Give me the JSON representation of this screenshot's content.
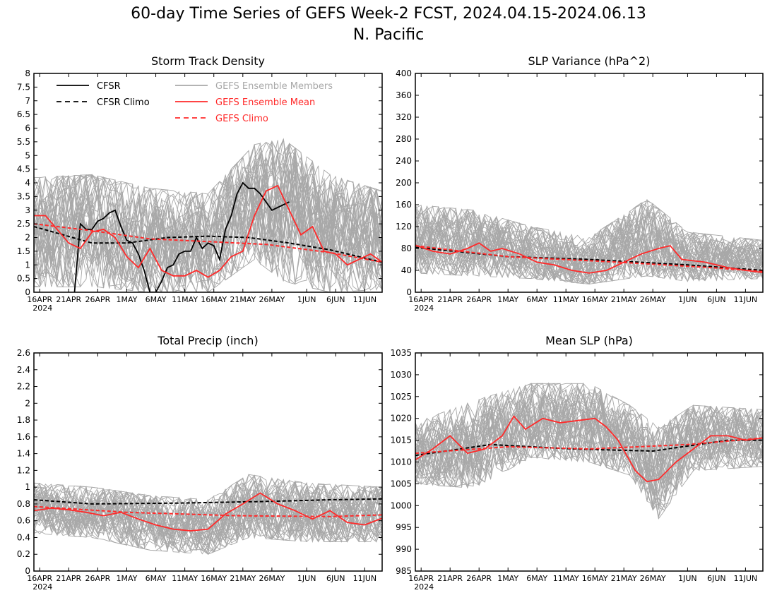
{
  "title_line1": "60-day Time Series of GEFS Week-2 FCST, 2024.04.15-2024.06.13",
  "title_line2": "N. Pacific",
  "colors": {
    "cfsr": "#000000",
    "members": "#a8a8a8",
    "ens_mean": "#ff2a2a",
    "gefs_climo": "#ff2a2a"
  },
  "legend": {
    "cfsr": "CFSR",
    "cfsr_climo": "CFSR Climo",
    "members": "GEFS Ensemble Members",
    "mean": "GEFS Ensemble Mean",
    "gefs_climo": "GEFS Climo"
  },
  "x_ticks": [
    "16APR",
    "21APR",
    "26APR",
    "1MAY",
    "6MAY",
    "11MAY",
    "16MAY",
    "21MAY",
    "26MAY",
    "1JUN",
    "6JUN",
    "11JUN"
  ],
  "x_year": "2024",
  "chart_data": [
    {
      "type": "line",
      "title": "Storm Track Density",
      "xlabel": "",
      "ylabel": "",
      "ylim": [
        0,
        8
      ],
      "y_ticks": [
        "0",
        "0.5",
        "1",
        "1.5",
        "2",
        "2.5",
        "3",
        "3.5",
        "4",
        "4.5",
        "5",
        "5.5",
        "6",
        "6.5",
        "7",
        "7.5",
        "8"
      ],
      "x_start": "2024-04-15",
      "members_envelope": {
        "dates": [
          "2024-04-15",
          "2024-04-25",
          "2024-05-05",
          "2024-05-15",
          "2024-05-23",
          "2024-05-28",
          "2024-06-05",
          "2024-06-14"
        ],
        "low": [
          0.2,
          0.2,
          0.0,
          0.0,
          1.2,
          0.4,
          0.0,
          0.1
        ],
        "high": [
          4.2,
          4.3,
          3.8,
          3.6,
          5.4,
          5.6,
          4.3,
          3.7
        ]
      },
      "series": [
        {
          "name": "CFSR",
          "style": "solid-black",
          "dates": [
            "2024-04-22",
            "2024-04-23",
            "2024-04-24",
            "2024-04-25",
            "2024-04-26",
            "2024-04-27",
            "2024-04-28",
            "2024-04-29",
            "2024-04-30",
            "2024-05-01",
            "2024-05-02",
            "2024-05-03",
            "2024-05-04",
            "2024-05-05",
            "2024-05-06",
            "2024-05-07",
            "2024-05-08",
            "2024-05-09",
            "2024-05-10",
            "2024-05-11",
            "2024-05-12",
            "2024-05-13",
            "2024-05-14",
            "2024-05-15",
            "2024-05-16",
            "2024-05-17",
            "2024-05-18",
            "2024-05-19",
            "2024-05-20",
            "2024-05-21",
            "2024-05-22",
            "2024-05-23",
            "2024-05-24",
            "2024-05-25",
            "2024-05-26",
            "2024-05-27",
            "2024-05-28",
            "2024-05-29"
          ],
          "values": [
            0.0,
            2.5,
            2.3,
            2.3,
            2.6,
            2.7,
            2.9,
            3.0,
            2.4,
            1.9,
            1.8,
            1.4,
            0.8,
            0.0,
            0.0,
            0.4,
            0.9,
            1.0,
            1.4,
            1.5,
            1.5,
            2.0,
            1.6,
            1.8,
            1.7,
            1.2,
            2.3,
            2.8,
            3.6,
            4.0,
            3.8,
            3.8,
            3.6,
            3.3,
            3.0,
            3.1,
            3.2,
            3.3
          ]
        },
        {
          "name": "CFSR Climo",
          "style": "dashed-black",
          "dates": [
            "2024-04-15",
            "2024-04-20",
            "2024-04-25",
            "2024-05-01",
            "2024-05-08",
            "2024-05-15",
            "2024-05-22",
            "2024-05-29",
            "2024-06-05",
            "2024-06-14"
          ],
          "values": [
            2.4,
            2.1,
            1.8,
            1.8,
            2.0,
            2.05,
            2.0,
            1.8,
            1.55,
            1.1
          ]
        },
        {
          "name": "GEFS Ensemble Mean",
          "style": "solid-red",
          "dates": [
            "2024-04-15",
            "2024-04-17",
            "2024-04-19",
            "2024-04-21",
            "2024-04-23",
            "2024-04-25",
            "2024-04-27",
            "2024-04-29",
            "2024-05-01",
            "2024-05-03",
            "2024-05-05",
            "2024-05-07",
            "2024-05-09",
            "2024-05-11",
            "2024-05-13",
            "2024-05-15",
            "2024-05-17",
            "2024-05-19",
            "2024-05-21",
            "2024-05-23",
            "2024-05-25",
            "2024-05-27",
            "2024-05-29",
            "2024-05-31",
            "2024-06-02",
            "2024-06-04",
            "2024-06-06",
            "2024-06-08",
            "2024-06-10",
            "2024-06-12",
            "2024-06-14"
          ],
          "values": [
            2.8,
            2.8,
            2.3,
            1.8,
            1.6,
            2.2,
            2.3,
            2.0,
            1.3,
            0.9,
            1.6,
            0.8,
            0.6,
            0.6,
            0.8,
            0.55,
            0.8,
            1.3,
            1.5,
            2.8,
            3.7,
            3.9,
            3.0,
            2.1,
            2.4,
            1.5,
            1.4,
            1.0,
            1.2,
            1.4,
            1.1
          ]
        },
        {
          "name": "GEFS Climo",
          "style": "dashed-red",
          "dates": [
            "2024-04-15",
            "2024-04-25",
            "2024-05-05",
            "2024-05-15",
            "2024-05-25",
            "2024-06-05",
            "2024-06-14"
          ],
          "values": [
            2.5,
            2.25,
            1.95,
            1.85,
            1.75,
            1.45,
            1.1
          ]
        }
      ]
    },
    {
      "type": "line",
      "title": "SLP Variance (hPa^2)",
      "xlabel": "",
      "ylabel": "",
      "ylim": [
        0,
        400
      ],
      "y_ticks": [
        "0",
        "40",
        "80",
        "120",
        "160",
        "200",
        "240",
        "280",
        "320",
        "360",
        "400"
      ],
      "x_start": "2024-04-15",
      "members_envelope": {
        "dates": [
          "2024-04-15",
          "2024-04-25",
          "2024-05-05",
          "2024-05-15",
          "2024-05-25",
          "2024-06-01",
          "2024-06-14"
        ],
        "low": [
          35,
          30,
          25,
          15,
          30,
          20,
          25
        ],
        "high": [
          160,
          150,
          120,
          100,
          170,
          110,
          95
        ]
      },
      "series": [
        {
          "name": "CFSR Climo",
          "style": "dashed-black",
          "dates": [
            "2024-04-15",
            "2024-05-01",
            "2024-05-15",
            "2024-06-01",
            "2024-06-14"
          ],
          "values": [
            82,
            65,
            60,
            50,
            40
          ]
        },
        {
          "name": "GEFS Ensemble Mean",
          "style": "solid-red",
          "dates": [
            "2024-04-15",
            "2024-04-18",
            "2024-04-21",
            "2024-04-24",
            "2024-04-26",
            "2024-04-28",
            "2024-04-30",
            "2024-05-03",
            "2024-05-06",
            "2024-05-09",
            "2024-05-12",
            "2024-05-15",
            "2024-05-18",
            "2024-05-21",
            "2024-05-24",
            "2024-05-27",
            "2024-05-29",
            "2024-05-31",
            "2024-06-04",
            "2024-06-08",
            "2024-06-11",
            "2024-06-14"
          ],
          "values": [
            86,
            75,
            70,
            80,
            90,
            75,
            80,
            70,
            55,
            50,
            40,
            35,
            40,
            55,
            70,
            80,
            85,
            60,
            55,
            45,
            40,
            36
          ]
        },
        {
          "name": "GEFS Climo",
          "style": "dashed-red",
          "dates": [
            "2024-04-15",
            "2024-05-01",
            "2024-05-20",
            "2024-06-05",
            "2024-06-14"
          ],
          "values": [
            85,
            65,
            55,
            45,
            38
          ]
        }
      ]
    },
    {
      "type": "line",
      "title": "Total Precip (inch)",
      "xlabel": "",
      "ylabel": "",
      "ylim": [
        0,
        2.6
      ],
      "y_ticks": [
        "0",
        "0.2",
        "0.4",
        "0.6",
        "0.8",
        "1",
        "1.2",
        "1.4",
        "1.6",
        "1.8",
        "2",
        "2.2",
        "2.4",
        "2.6"
      ],
      "x_start": "2024-04-15",
      "members_envelope": {
        "dates": [
          "2024-04-15",
          "2024-04-25",
          "2024-05-05",
          "2024-05-15",
          "2024-05-22",
          "2024-06-01",
          "2024-06-14"
        ],
        "low": [
          0.45,
          0.4,
          0.25,
          0.2,
          0.4,
          0.35,
          0.35
        ],
        "high": [
          1.05,
          1.0,
          0.9,
          0.85,
          1.15,
          1.05,
          1.0
        ]
      },
      "series": [
        {
          "name": "CFSR Climo",
          "style": "dashed-black",
          "dates": [
            "2024-04-15",
            "2024-04-25",
            "2024-05-10",
            "2024-05-25",
            "2024-06-05",
            "2024-06-14"
          ],
          "values": [
            0.85,
            0.8,
            0.81,
            0.83,
            0.85,
            0.86
          ]
        },
        {
          "name": "GEFS Ensemble Mean",
          "style": "solid-red",
          "dates": [
            "2024-04-15",
            "2024-04-18",
            "2024-04-21",
            "2024-04-24",
            "2024-04-27",
            "2024-04-30",
            "2024-05-03",
            "2024-05-06",
            "2024-05-09",
            "2024-05-12",
            "2024-05-15",
            "2024-05-18",
            "2024-05-21",
            "2024-05-24",
            "2024-05-27",
            "2024-05-30",
            "2024-06-02",
            "2024-06-05",
            "2024-06-08",
            "2024-06-11",
            "2024-06-14"
          ],
          "values": [
            0.72,
            0.75,
            0.73,
            0.7,
            0.66,
            0.7,
            0.62,
            0.55,
            0.5,
            0.48,
            0.5,
            0.68,
            0.8,
            0.93,
            0.8,
            0.72,
            0.62,
            0.72,
            0.58,
            0.55,
            0.63
          ]
        },
        {
          "name": "GEFS Climo",
          "style": "dashed-red",
          "dates": [
            "2024-04-15",
            "2024-05-01",
            "2024-05-20",
            "2024-06-05",
            "2024-06-14"
          ],
          "values": [
            0.77,
            0.7,
            0.66,
            0.65,
            0.67
          ]
        }
      ]
    },
    {
      "type": "line",
      "title": "Mean SLP (hPa)",
      "xlabel": "",
      "ylabel": "",
      "ylim": [
        985,
        1035
      ],
      "y_ticks": [
        "985",
        "990",
        "995",
        "1000",
        "1005",
        "1010",
        "1015",
        "1020",
        "1025",
        "1030",
        "1035"
      ],
      "x_start": "2024-04-15",
      "members_envelope": {
        "dates": [
          "2024-04-15",
          "2024-04-25",
          "2024-05-05",
          "2024-05-15",
          "2024-05-22",
          "2024-05-27",
          "2024-06-02",
          "2024-06-14"
        ],
        "low": [
          1005,
          1004,
          1011,
          1010,
          1007,
          997,
          1008,
          1009
        ],
        "high": [
          1019,
          1024,
          1028,
          1028,
          1023,
          1018,
          1023,
          1022
        ]
      },
      "series": [
        {
          "name": "CFSR Climo",
          "style": "dashed-black",
          "dates": [
            "2024-04-15",
            "2024-04-28",
            "2024-05-12",
            "2024-05-26",
            "2024-06-08",
            "2024-06-14"
          ],
          "values": [
            1011.5,
            1014,
            1013,
            1012.5,
            1015,
            1015
          ]
        },
        {
          "name": "GEFS Ensemble Mean",
          "style": "solid-red",
          "dates": [
            "2024-04-15",
            "2024-04-18",
            "2024-04-21",
            "2024-04-24",
            "2024-04-27",
            "2024-04-30",
            "2024-05-02",
            "2024-05-04",
            "2024-05-07",
            "2024-05-10",
            "2024-05-13",
            "2024-05-16",
            "2024-05-18",
            "2024-05-20",
            "2024-05-23",
            "2024-05-25",
            "2024-05-27",
            "2024-05-30",
            "2024-06-02",
            "2024-06-05",
            "2024-06-08",
            "2024-06-11",
            "2024-06-14"
          ],
          "values": [
            1010.5,
            1013,
            1016,
            1012,
            1013,
            1016,
            1020.5,
            1017.5,
            1020,
            1019,
            1019.5,
            1020,
            1018,
            1015,
            1008,
            1005.5,
            1006,
            1010,
            1013,
            1016,
            1016,
            1015,
            1015.5
          ]
        },
        {
          "name": "GEFS Climo",
          "style": "dashed-red",
          "dates": [
            "2024-04-15",
            "2024-05-01",
            "2024-05-15",
            "2024-06-01",
            "2024-06-14"
          ],
          "values": [
            1012,
            1013.5,
            1013,
            1014,
            1015.5
          ]
        }
      ]
    }
  ]
}
